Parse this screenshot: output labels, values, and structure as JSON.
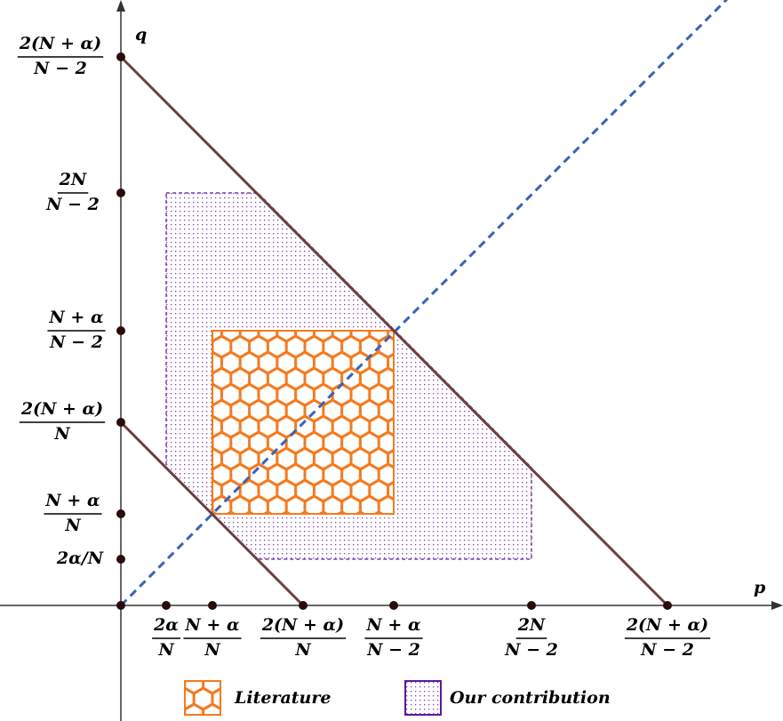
{
  "axes": {
    "x_label": "p",
    "y_label": "q"
  },
  "x_ticks": [
    {
      "num": "2α",
      "den": "N"
    },
    {
      "num": "N + α",
      "den": "N"
    },
    {
      "num": "2(N + α)",
      "den": "N"
    },
    {
      "num": "N + α",
      "den": "N − 2"
    },
    {
      "num": "2N",
      "den": "N − 2"
    },
    {
      "num": "2(N + α)",
      "den": "N − 2"
    }
  ],
  "y_ticks": [
    {
      "text": "2α/N"
    },
    {
      "num": "N + α",
      "den": "N"
    },
    {
      "num": "2(N + α)",
      "den": "N"
    },
    {
      "num": "N + α",
      "den": "N − 2"
    },
    {
      "num": "2N",
      "den": "N − 2"
    },
    {
      "num": "2(N + α)",
      "den": "N − 2"
    }
  ],
  "legend": [
    {
      "label": "Literature"
    },
    {
      "label": "Our contribution"
    }
  ]
}
